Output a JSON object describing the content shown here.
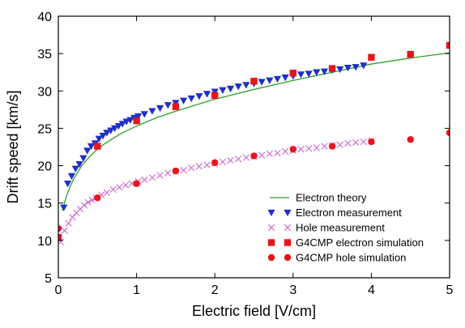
{
  "chart_data": {
    "type": "scatter",
    "title": "",
    "xlabel": "Electric field [V/cm]",
    "ylabel": "Drift speed [km/s]",
    "xlim": [
      0,
      5
    ],
    "ylim": [
      5,
      40
    ],
    "xticks": [
      0,
      1,
      2,
      3,
      4,
      5
    ],
    "yticks": [
      5,
      10,
      15,
      20,
      25,
      30,
      35,
      40
    ],
    "grid": false,
    "legend_position": "bottom-right",
    "series": [
      {
        "name": "Electron theory",
        "kind": "line",
        "color": "#2ca02c",
        "x": [
          0.05,
          0.1,
          0.15,
          0.2,
          0.3,
          0.4,
          0.5,
          0.6,
          0.8,
          1.0,
          1.25,
          1.5,
          1.75,
          2.0,
          2.5,
          3.0,
          3.5,
          4.0,
          4.5,
          5.0
        ],
        "y": [
          14.0,
          15.8,
          17.2,
          18.3,
          20.0,
          21.2,
          22.2,
          23.0,
          24.3,
          25.3,
          26.4,
          27.3,
          28.1,
          28.9,
          30.2,
          31.4,
          32.5,
          33.6,
          34.4,
          35.1
        ]
      },
      {
        "name": "Electron measurement",
        "kind": "marker",
        "marker": "triangle-down",
        "color": "#1f2fc8",
        "x": [
          0.07,
          0.12,
          0.17,
          0.22,
          0.27,
          0.32,
          0.37,
          0.42,
          0.47,
          0.52,
          0.57,
          0.62,
          0.67,
          0.72,
          0.77,
          0.82,
          0.87,
          0.92,
          0.97,
          1.02,
          1.1,
          1.2,
          1.3,
          1.4,
          1.5,
          1.6,
          1.7,
          1.8,
          1.9,
          2.0,
          2.1,
          2.2,
          2.3,
          2.4,
          2.5,
          2.6,
          2.7,
          2.8,
          2.9,
          3.0,
          3.1,
          3.2,
          3.3,
          3.4,
          3.5,
          3.6,
          3.7,
          3.8,
          3.9
        ],
        "y": [
          14.4,
          17.6,
          18.6,
          19.6,
          20.2,
          21.0,
          22.0,
          22.6,
          23.0,
          23.6,
          24.0,
          24.4,
          24.7,
          25.0,
          25.3,
          25.6,
          25.9,
          26.1,
          26.4,
          26.6,
          26.9,
          27.3,
          27.7,
          28.1,
          28.4,
          28.7,
          29.0,
          29.3,
          29.6,
          29.9,
          30.1,
          30.3,
          30.6,
          30.8,
          31.0,
          31.2,
          31.4,
          31.6,
          31.8,
          32.0,
          32.2,
          32.3,
          32.5,
          32.6,
          32.8,
          32.9,
          33.1,
          33.2,
          33.4
        ]
      },
      {
        "name": "Hole measurement",
        "kind": "marker",
        "marker": "x",
        "color": "#cc66cc",
        "x": [
          0.03,
          0.08,
          0.13,
          0.18,
          0.23,
          0.28,
          0.33,
          0.38,
          0.43,
          0.48,
          0.55,
          0.62,
          0.7,
          0.78,
          0.86,
          0.94,
          1.02,
          1.1,
          1.2,
          1.3,
          1.4,
          1.5,
          1.6,
          1.7,
          1.8,
          1.9,
          2.0,
          2.1,
          2.2,
          2.3,
          2.4,
          2.5,
          2.6,
          2.7,
          2.8,
          2.9,
          3.0,
          3.1,
          3.2,
          3.3,
          3.4,
          3.5,
          3.6,
          3.7,
          3.8,
          3.9,
          4.0
        ],
        "y": [
          9.8,
          11.3,
          12.3,
          13.1,
          13.7,
          14.2,
          14.7,
          15.1,
          15.4,
          15.7,
          16.1,
          16.4,
          16.8,
          17.1,
          17.4,
          17.6,
          17.9,
          18.1,
          18.4,
          18.7,
          19.0,
          19.2,
          19.4,
          19.7,
          19.9,
          20.1,
          20.3,
          20.5,
          20.7,
          20.9,
          21.1,
          21.2,
          21.4,
          21.6,
          21.7,
          21.9,
          22.0,
          22.2,
          22.3,
          22.4,
          22.6,
          22.7,
          22.8,
          23.0,
          23.1,
          23.2,
          23.3
        ]
      },
      {
        "name": "G4CMP electron simulation",
        "kind": "marker",
        "marker": "square",
        "color": "#e8151b",
        "x": [
          0.0,
          0.5,
          1.0,
          1.5,
          2.0,
          2.5,
          3.0,
          3.5,
          4.0,
          4.5,
          5.0
        ],
        "y": [
          10.4,
          22.6,
          26.0,
          27.9,
          29.4,
          31.3,
          32.4,
          33.0,
          34.5,
          34.9,
          36.1
        ]
      },
      {
        "name": "G4CMP hole simulation",
        "kind": "marker",
        "marker": "circle",
        "color": "#e8151b",
        "x": [
          0.0,
          0.5,
          1.0,
          1.5,
          2.0,
          2.5,
          3.0,
          3.5,
          4.0,
          4.5,
          5.0
        ],
        "y": [
          11.6,
          15.7,
          17.6,
          19.3,
          20.4,
          21.3,
          22.2,
          22.6,
          23.2,
          23.5,
          24.4
        ]
      }
    ]
  }
}
